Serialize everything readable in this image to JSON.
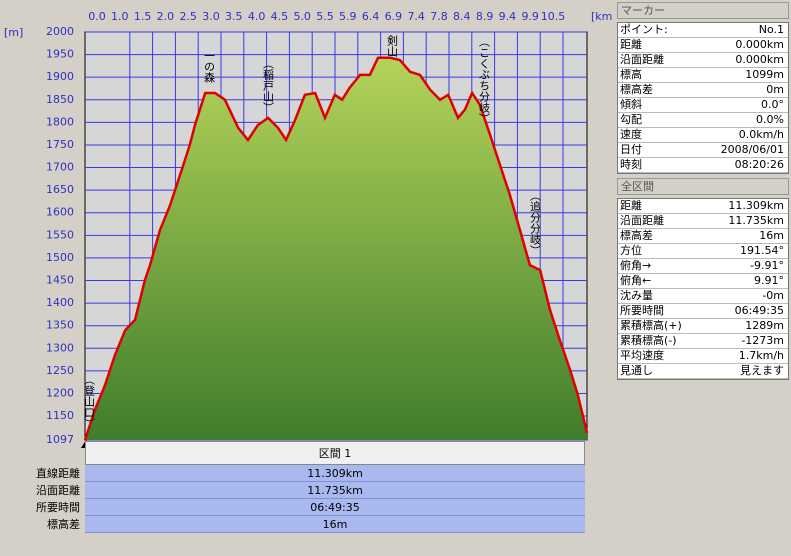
{
  "chart_data": {
    "type": "area",
    "y_unit": "[m]",
    "x_unit": "[km]",
    "x_tick_labels": [
      "0.0",
      "1.0",
      "1.5",
      "2.0",
      "2.5",
      "3.0",
      "3.5",
      "4.0",
      "4.5",
      "5.0",
      "5.5",
      "5.9",
      "6.4",
      "6.9",
      "7.4",
      "7.8",
      "8.4",
      "8.9",
      "9.4",
      "9.9",
      "10.5"
    ],
    "xlim": [
      0,
      11.735
    ],
    "x": [
      0,
      0.23,
      0.47,
      0.7,
      0.94,
      1.17,
      1.4,
      1.52,
      1.75,
      1.99,
      2.22,
      2.45,
      2.57,
      2.81,
      3.04,
      3.27,
      3.58,
      3.81,
      4.04,
      4.28,
      4.51,
      4.7,
      4.91,
      5.14,
      5.38,
      5.61,
      5.84,
      6.01,
      6.19,
      6.43,
      6.66,
      6.85,
      7.13,
      7.36,
      7.6,
      7.83,
      8.07,
      8.3,
      8.49,
      8.72,
      8.88,
      9.05,
      9.23,
      9.47,
      9.7,
      9.93,
      10.17,
      10.4,
      10.64,
      10.87,
      11.1,
      11.34,
      11.52,
      11.735
    ],
    "values": [
      1097,
      1163,
      1219,
      1285,
      1340,
      1363,
      1451,
      1484,
      1561,
      1617,
      1683,
      1750,
      1794,
      1865,
      1865,
      1850,
      1788,
      1761,
      1794,
      1810,
      1788,
      1761,
      1805,
      1861,
      1865,
      1810,
      1861,
      1850,
      1877,
      1905,
      1905,
      1943,
      1943,
      1938,
      1912,
      1905,
      1872,
      1850,
      1861,
      1810,
      1828,
      1865,
      1839,
      1772,
      1706,
      1640,
      1561,
      1484,
      1473,
      1385,
      1318,
      1252,
      1197,
      1113
    ],
    "ylim": [
      1097,
      2000
    ],
    "yticks": [
      1097,
      1150,
      1200,
      1250,
      1300,
      1350,
      1400,
      1450,
      1500,
      1550,
      1600,
      1650,
      1700,
      1750,
      1800,
      1850,
      1900,
      1950,
      2000
    ],
    "color": "#e00000",
    "fill": "#7aab3c",
    "grid": true,
    "annotations": [
      "（登山口）",
      "一の森",
      "（稲戸山）",
      "剣山",
      "（こくぶち分岐）",
      "（追分分岐）"
    ]
  },
  "marker_panel": {
    "title": "マーカー",
    "rows": [
      [
        "ポイント:",
        "No.1"
      ],
      [
        "距離",
        "0.000km"
      ],
      [
        "沿面距離",
        "0.000km"
      ],
      [
        "標高",
        "1099m"
      ],
      [
        "標高差",
        "0m"
      ],
      [
        "傾斜",
        "0.0°"
      ],
      [
        "勾配",
        "0.0%"
      ],
      [
        "速度",
        "0.0km/h"
      ],
      [
        "日付",
        "2008/06/01"
      ],
      [
        "時刻",
        "08:20:26"
      ]
    ]
  },
  "total_panel": {
    "title": "全区間",
    "rows": [
      [
        "距離",
        "11.309km"
      ],
      [
        "沿面距離",
        "11.735km"
      ],
      [
        "標高差",
        "16m"
      ],
      [
        "方位",
        "191.54°"
      ],
      [
        "俯角→",
        "-9.91°"
      ],
      [
        "俯角←",
        "9.91°"
      ],
      [
        "沈み量",
        "-0m"
      ],
      [
        "所要時間",
        "06:49:35"
      ],
      [
        "累積標高(+)",
        "1289m"
      ],
      [
        "累積標高(-)",
        "-1273m"
      ],
      [
        "平均速度",
        "1.7km/h"
      ],
      [
        "見通し",
        "見えます"
      ]
    ]
  },
  "section_panel": {
    "title": "区間 1",
    "rows": [
      [
        "直線距離",
        "11.309km"
      ],
      [
        "沿面距離",
        "11.735km"
      ],
      [
        "所要時間",
        "06:49:35"
      ],
      [
        "標高差",
        "16m"
      ]
    ]
  }
}
